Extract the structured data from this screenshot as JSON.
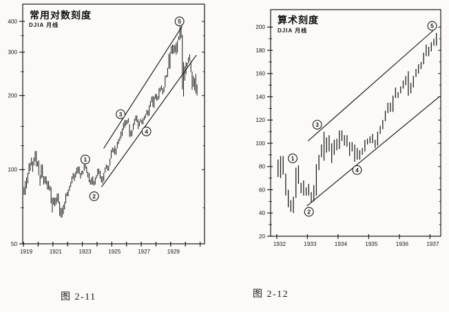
{
  "page": {
    "paper_color": "#fbfaf7",
    "ink_color": "#1a1a1a"
  },
  "chart_data": [
    {
      "id": "fig-2-11",
      "type": "bar",
      "bar_style": "high-low-monthly",
      "title": "常用对数刻度",
      "subtitle": "DJIA 月线",
      "caption": "图 2-11",
      "y_scale": "log",
      "ylim": [
        50,
        470
      ],
      "xlim": [
        1918.95,
        1931.3
      ],
      "y_ticks_major": [
        50,
        100,
        200,
        300,
        400
      ],
      "y_tick_labels": [
        "50",
        "100",
        "200",
        "300",
        "400"
      ],
      "y_ticks_minor": [
        70,
        125,
        150,
        250,
        350
      ],
      "x_ticks": [
        1919,
        1920,
        1921,
        1922,
        1923,
        1924,
        1925,
        1926,
        1927,
        1928,
        1929,
        1930,
        1931
      ],
      "x_tick_labeled": [
        1919,
        1921,
        1923,
        1925,
        1927,
        1929
      ],
      "grid": false,
      "legend": "none",
      "ink": "#161616",
      "bars": {
        "x_start": 1919.042,
        "x_step": 0.08333,
        "low_high": [
          [
            79,
            85
          ],
          [
            79,
            90
          ],
          [
            84,
            93
          ],
          [
            88,
            97
          ],
          [
            96,
            106
          ],
          [
            99,
            107
          ],
          [
            104,
            112
          ],
          [
            98,
            108
          ],
          [
            104,
            112
          ],
          [
            108,
            119
          ],
          [
            103,
            119
          ],
          [
            103,
            108
          ],
          [
            95,
            109
          ],
          [
            86,
            95
          ],
          [
            92,
            105
          ],
          [
            93,
            105
          ],
          [
            87,
            94
          ],
          [
            88,
            94
          ],
          [
            87,
            94
          ],
          [
            83,
            90
          ],
          [
            83,
            90
          ],
          [
            82,
            86
          ],
          [
            73,
            85
          ],
          [
            67,
            77
          ],
          [
            72,
            77
          ],
          [
            71,
            77
          ],
          [
            72,
            77
          ],
          [
            74,
            80
          ],
          [
            73,
            80
          ],
          [
            65,
            74
          ],
          [
            64,
            70
          ],
          [
            64,
            70
          ],
          [
            66,
            72
          ],
          [
            69,
            74
          ],
          [
            73,
            80
          ],
          [
            78,
            81
          ],
          [
            78,
            83
          ],
          [
            82,
            86
          ],
          [
            85,
            89
          ],
          [
            88,
            94
          ],
          [
            92,
            97
          ],
          [
            90,
            96
          ],
          [
            93,
            98
          ],
          [
            96,
            102
          ],
          [
            97,
            103
          ],
          [
            96,
            103
          ],
          [
            92,
            97
          ],
          [
            95,
            99
          ],
          [
            96,
            99
          ],
          [
            99,
            105
          ],
          [
            101,
            105
          ],
          [
            97,
            103
          ],
          [
            93,
            98
          ],
          [
            89,
            97
          ],
          [
            87,
            91
          ],
          [
            87,
            93
          ],
          [
            87,
            94
          ],
          [
            86,
            90
          ],
          [
            87,
            93
          ],
          [
            92,
            95
          ],
          [
            94,
            101
          ],
          [
            96,
            101
          ],
          [
            92,
            99
          ],
          [
            89,
            94
          ],
          [
            88,
            94
          ],
          [
            90,
            97
          ],
          [
            97,
            102
          ],
          [
            101,
            105
          ],
          [
            99,
            104
          ],
          [
            99,
            104
          ],
          [
            104,
            111
          ],
          [
            111,
            120
          ],
          [
            118,
            123
          ],
          [
            117,
            122
          ],
          [
            115,
            125
          ],
          [
            115,
            122
          ],
          [
            122,
            130
          ],
          [
            127,
            133
          ],
          [
            131,
            136
          ],
          [
            134,
            143
          ],
          [
            137,
            147
          ],
          [
            145,
            155
          ],
          [
            148,
            159
          ],
          [
            151,
            159
          ],
          [
            153,
            159
          ],
          [
            155,
            162
          ],
          [
            136,
            153
          ],
          [
            136,
            144
          ],
          [
            137,
            145
          ],
          [
            145,
            154
          ],
          [
            152,
            161
          ],
          [
            158,
            166
          ],
          [
            156,
            166
          ],
          [
            146,
            160
          ],
          [
            150,
            157
          ],
          [
            156,
            161
          ],
          [
            153,
            159
          ],
          [
            153,
            162
          ],
          [
            159,
            165
          ],
          [
            162,
            168
          ],
          [
            167,
            175
          ],
          [
            165,
            174
          ],
          [
            166,
            183
          ],
          [
            180,
            190
          ],
          [
            188,
            198
          ],
          [
            180,
            199
          ],
          [
            178,
            198
          ],
          [
            194,
            203
          ],
          [
            191,
            203
          ],
          [
            191,
            199
          ],
          [
            194,
            214
          ],
          [
            207,
            216
          ],
          [
            211,
            220
          ],
          [
            202,
            214
          ],
          [
            206,
            217
          ],
          [
            216,
            241
          ],
          [
            237,
            242
          ],
          [
            238,
            259
          ],
          [
            257,
            295
          ],
          [
            257,
            300
          ],
          [
            296,
            318
          ],
          [
            295,
            322
          ],
          [
            296,
            321
          ],
          [
            300,
            320
          ],
          [
            293,
            327
          ],
          [
            299,
            334
          ],
          [
            335,
            348
          ],
          [
            337,
            381
          ],
          [
            343,
            382
          ],
          [
            212,
            353
          ],
          [
            198,
            273
          ],
          [
            230,
            263
          ],
          [
            244,
            273
          ],
          [
            262,
            272
          ],
          [
            270,
            286
          ],
          [
            276,
            294
          ],
          [
            249,
            276
          ],
          [
            211,
            250
          ],
          [
            217,
            240
          ],
          [
            210,
            235
          ],
          [
            204,
            245
          ],
          [
            200,
            222
          ]
        ]
      },
      "trendlines": [
        {
          "name": "upper-channel",
          "x1": 1924.45,
          "y1": 122,
          "x2": 1929.78,
          "y2": 382
        },
        {
          "name": "lower-channel",
          "x1": 1924.3,
          "y1": 85,
          "x2": 1930.75,
          "y2": 292
        }
      ],
      "wave_labels": [
        {
          "n": "1",
          "glyph": "①",
          "x": 1923.2,
          "y": 110
        },
        {
          "n": "2",
          "glyph": "②",
          "x": 1923.8,
          "y": 78
        },
        {
          "n": "3",
          "glyph": "③",
          "x": 1925.6,
          "y": 168
        },
        {
          "n": "4",
          "glyph": "④",
          "x": 1927.35,
          "y": 143
        },
        {
          "n": "5",
          "glyph": "⑤",
          "x": 1929.6,
          "y": 400
        }
      ]
    },
    {
      "id": "fig-2-12",
      "type": "bar",
      "bar_style": "high-low-monthly",
      "title": "算术刻度",
      "subtitle": "DJIA 月线",
      "caption": "图 2-12",
      "y_scale": "linear",
      "ylim": [
        20,
        215
      ],
      "xlim": [
        1931.8,
        1937.35
      ],
      "y_ticks_major": [
        20,
        40,
        60,
        80,
        100,
        120,
        140,
        160,
        180,
        200
      ],
      "y_tick_labels": [
        "20",
        "40",
        "60",
        "80",
        "100",
        "120",
        "140",
        "160",
        "180",
        "200"
      ],
      "y_ticks_minor": [
        30,
        50,
        70,
        90,
        110,
        130,
        150,
        170,
        190
      ],
      "x_ticks": [
        1932,
        1933,
        1934,
        1935,
        1936,
        1937
      ],
      "x_tick_labeled": [
        1932,
        1933,
        1934,
        1935,
        1936,
        1937
      ],
      "grid": false,
      "legend": "none",
      "ink": "#161616",
      "bars": {
        "x_start": 1932.042,
        "x_step": 0.08333,
        "low_high": [
          [
            71,
            86
          ],
          [
            70,
            89
          ],
          [
            73,
            89
          ],
          [
            55,
            74
          ],
          [
            45,
            60
          ],
          [
            41,
            51
          ],
          [
            40,
            54
          ],
          [
            53,
            79
          ],
          [
            65,
            81
          ],
          [
            57,
            66
          ],
          [
            55,
            68
          ],
          [
            55,
            62
          ],
          [
            55,
            65
          ],
          [
            49,
            58
          ],
          [
            50,
            64
          ],
          [
            55,
            82
          ],
          [
            77,
            90
          ],
          [
            88,
            99
          ],
          [
            85,
            110
          ],
          [
            92,
            105
          ],
          [
            93,
            107
          ],
          [
            83,
            100
          ],
          [
            90,
            103
          ],
          [
            94,
            104
          ],
          [
            95,
            111
          ],
          [
            102,
            111
          ],
          [
            98,
            107
          ],
          [
            97,
            107
          ],
          [
            89,
            101
          ],
          [
            93,
            101
          ],
          [
            84,
            99
          ],
          [
            86,
            96
          ],
          [
            86,
            94
          ],
          [
            90,
            96
          ],
          [
            93,
            103
          ],
          [
            99,
            104
          ],
          [
            100,
            106
          ],
          [
            100,
            108
          ],
          [
            96,
            103
          ],
          [
            98,
            110
          ],
          [
            108,
            115
          ],
          [
            112,
            120
          ],
          [
            119,
            128
          ],
          [
            126,
            135
          ],
          [
            127,
            135
          ],
          [
            127,
            141
          ],
          [
            139,
            148
          ],
          [
            139,
            144
          ],
          [
            143,
            149
          ],
          [
            147,
            154
          ],
          [
            150,
            158
          ],
          [
            141,
            162
          ],
          [
            143,
            152
          ],
          [
            148,
            158
          ],
          [
            157,
            164
          ],
          [
            160,
            168
          ],
          [
            164,
            170
          ],
          [
            168,
            178
          ],
          [
            175,
            185
          ],
          [
            175,
            183
          ],
          [
            179,
            187
          ],
          [
            184,
            190
          ],
          [
            184,
            195
          ]
        ]
      },
      "trendlines": [
        {
          "name": "upper-channel",
          "x1": 1933.02,
          "y1": 102,
          "x2": 1937.1,
          "y2": 197
        },
        {
          "name": "lower-channel",
          "x1": 1932.98,
          "y1": 46,
          "x2": 1937.3,
          "y2": 140
        }
      ],
      "wave_labels": [
        {
          "n": "1",
          "glyph": "①",
          "x": 1932.52,
          "y": 87
        },
        {
          "n": "2",
          "glyph": "②",
          "x": 1933.05,
          "y": 41
        },
        {
          "n": "3",
          "glyph": "③",
          "x": 1933.32,
          "y": 116
        },
        {
          "n": "4",
          "glyph": "④",
          "x": 1934.62,
          "y": 77
        },
        {
          "n": "5",
          "glyph": "⑤",
          "x": 1937.07,
          "y": 201
        }
      ]
    }
  ]
}
